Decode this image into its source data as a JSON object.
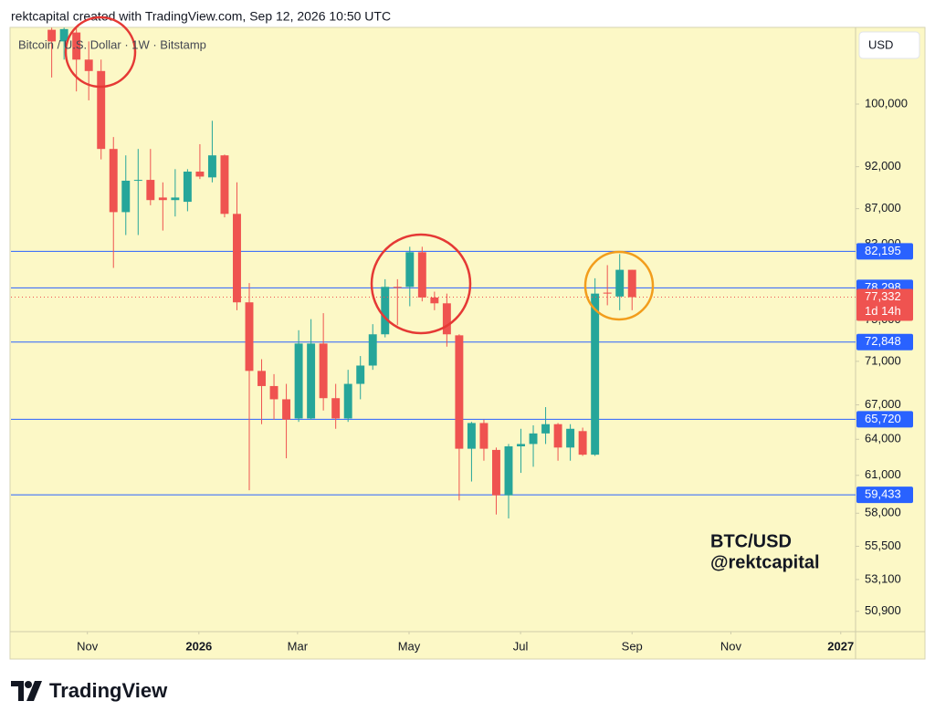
{
  "header": "rektcapital created with TradingView.com, Sep 12, 2026 10:50 UTC",
  "symbol_legend": "Bitcoin / U.S. Dollar · 1W · Bitstamp",
  "currency": "USD",
  "brand": "TradingView",
  "chart_data": {
    "type": "candlestick",
    "annotations": [
      "BTC/USD",
      "@rektcapital"
    ],
    "log_scale": true,
    "grid": false,
    "up_color": "#26a69a",
    "down_color": "#ef5350",
    "level_color": "#2962ff",
    "categories": [
      null,
      null,
      null,
      null,
      null,
      null,
      null,
      null,
      null,
      null,
      null,
      null,
      null,
      null,
      null,
      null,
      null,
      null,
      null,
      null,
      null,
      null,
      null,
      null,
      null,
      null,
      null,
      null,
      null,
      null,
      null,
      null,
      null,
      null,
      null,
      null,
      null,
      null,
      null,
      null,
      null,
      null,
      null,
      null,
      null,
      null,
      null,
      null
    ],
    "open": [
      110400,
      108700,
      110000,
      106100,
      104500,
      94200,
      86600,
      90300,
      90400,
      88300,
      88000,
      87800,
      91400,
      90700,
      93400,
      86400,
      76800,
      70100,
      68700,
      67500,
      65800,
      65800,
      72700,
      67600,
      65800,
      68900,
      70600,
      73600,
      78400,
      78400,
      82100,
      77300,
      76700,
      73500,
      63200,
      65400,
      63100,
      59400,
      63400,
      63600,
      64500,
      65300,
      63300,
      64700,
      62700,
      77800,
      77400,
      80200
    ],
    "high": [
      110700,
      110700,
      110700,
      108700,
      106100,
      95700,
      93400,
      94200,
      94200,
      90100,
      91700,
      91700,
      94800,
      97800,
      93500,
      90100,
      78800,
      71200,
      69800,
      68900,
      74000,
      75100,
      75700,
      68900,
      70200,
      71500,
      74600,
      79200,
      79200,
      82700,
      82700,
      77900,
      77700,
      73600,
      65500,
      65700,
      63300,
      63600,
      64900,
      65200,
      66800,
      65400,
      65300,
      65000,
      79300,
      80700,
      81900,
      80200
    ],
    "low": [
      103600,
      106100,
      101700,
      100500,
      92900,
      80400,
      84000,
      84000,
      87400,
      84500,
      86100,
      86700,
      90500,
      90100,
      86000,
      76000,
      59800,
      65300,
      65700,
      62400,
      65500,
      65700,
      66500,
      64900,
      65500,
      67500,
      70200,
      73300,
      74500,
      76400,
      76900,
      76000,
      72400,
      59000,
      60500,
      62200,
      57900,
      57600,
      61200,
      61700,
      63600,
      62200,
      62200,
      62600,
      62600,
      76500,
      76000,
      76000
    ],
    "close": [
      108700,
      110500,
      106100,
      104500,
      94200,
      86600,
      90300,
      90400,
      88000,
      88000,
      88300,
      91400,
      90800,
      93400,
      86400,
      76800,
      70100,
      68700,
      67500,
      65700,
      72700,
      72700,
      67600,
      65800,
      68900,
      70600,
      73600,
      78400,
      78300,
      82100,
      77300,
      76700,
      73600,
      63200,
      65400,
      63200,
      59400,
      63400,
      63600,
      64500,
      65300,
      63300,
      64900,
      62700,
      77700,
      77700,
      80200,
      77332
    ],
    "xlim": [
      -3.3,
      65.1
    ],
    "xticks": [
      {
        "value": 2.89,
        "label": "Nov"
      },
      {
        "value": 11.92,
        "label": "2026"
      },
      {
        "value": 19.91,
        "label": "Mar"
      },
      {
        "value": 28.94,
        "label": "May"
      },
      {
        "value": 37.97,
        "label": "Jul"
      },
      {
        "value": 47.0,
        "label": "Sep"
      },
      {
        "value": 55.0,
        "label": "Nov"
      },
      {
        "value": 63.9,
        "label": "2027"
      }
    ],
    "ylim": [
      49540,
      110750
    ],
    "yticks": [
      {
        "value": 100000,
        "label": "100,000"
      },
      {
        "value": 92000,
        "label": "92,000"
      },
      {
        "value": 87000,
        "label": "87,000"
      },
      {
        "value": 83000,
        "label": "83,000"
      },
      {
        "value": 75000,
        "label": "75,000"
      },
      {
        "value": 71000,
        "label": "71,000"
      },
      {
        "value": 67000,
        "label": "67,000"
      },
      {
        "value": 64000,
        "label": "64,000"
      },
      {
        "value": 61000,
        "label": "61,000"
      },
      {
        "value": 58000,
        "label": "58,000"
      },
      {
        "value": 55500,
        "label": "55,500"
      },
      {
        "value": 53100,
        "label": "53,100"
      },
      {
        "value": 50900,
        "label": "50,900"
      }
    ],
    "levels": [
      {
        "value": 82195,
        "label": "82,195"
      },
      {
        "value": 78298,
        "label": "78,298"
      },
      {
        "value": 72848,
        "label": "72,848"
      },
      {
        "value": 65720,
        "label": "65,720"
      },
      {
        "value": 59433,
        "label": "59,433"
      }
    ],
    "last_price": {
      "value": 77332,
      "label": "77,332",
      "countdown": "1d 14h"
    }
  }
}
